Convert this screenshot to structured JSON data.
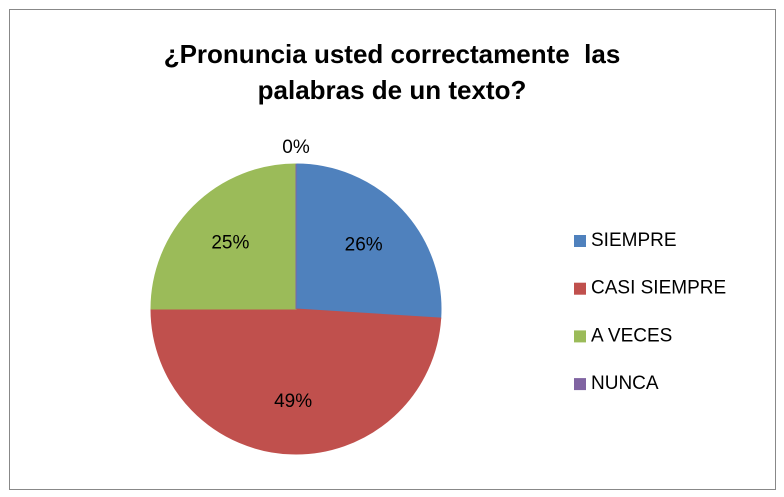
{
  "chart_data": {
    "type": "pie",
    "title": [
      "¿Pronuncia usted correctamente  las",
      "palabras de un texto?"
    ],
    "categories": [
      "SIEMPRE",
      "CASI SIEMPRE",
      "A VECES",
      "NUNCA"
    ],
    "values": [
      26,
      49,
      25,
      0
    ],
    "value_labels": [
      "26%",
      "49%",
      "25%",
      "0%"
    ],
    "colors": [
      "#4f81bd",
      "#c0504d",
      "#9bbb59",
      "#8064a2"
    ],
    "legend": "right"
  }
}
